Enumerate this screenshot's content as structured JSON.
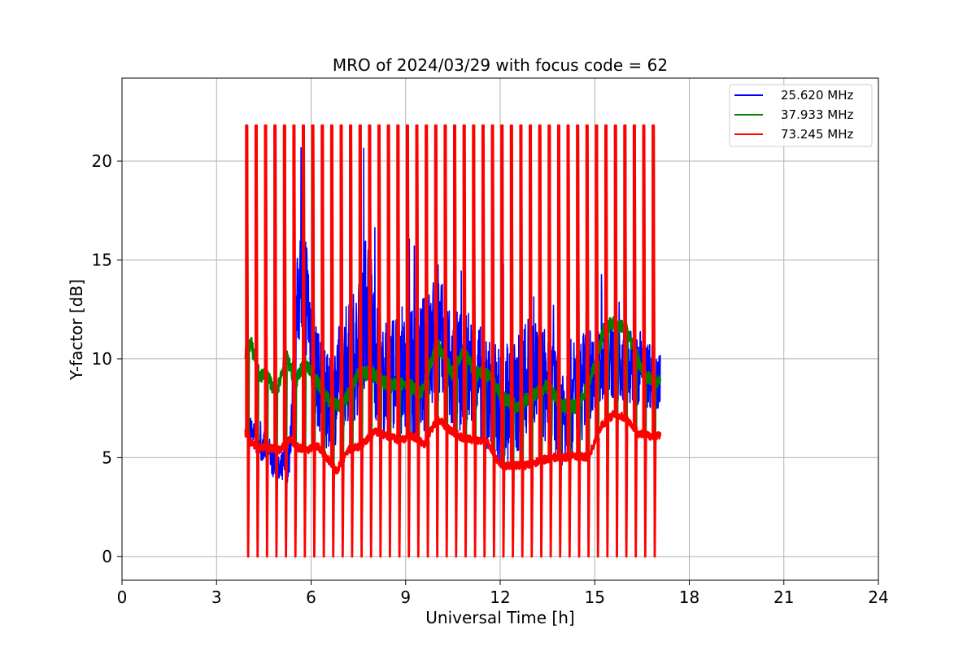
{
  "chart_data": {
    "type": "line",
    "title": "MRO of 2024/03/29 with focus code = 62",
    "xlabel": "Universal Time [h]",
    "ylabel": "Y-factor [dB]",
    "xlim": [
      0,
      24
    ],
    "ylim": [
      -1.2,
      24.2
    ],
    "xticks": [
      0,
      3,
      6,
      9,
      12,
      15,
      18,
      21,
      24
    ],
    "yticks": [
      0,
      5,
      10,
      15,
      20
    ],
    "grid": true,
    "legend_position": "top-right",
    "time_range_h": [
      3.92,
      17.08
    ],
    "calibration_pulse": {
      "period_h": 0.3,
      "peak_db": 21.8,
      "floor_db": {
        "25.620 MHz": 0.1,
        "37.933 MHz": 0.9,
        "73.245 MHz": 0.0
      }
    },
    "series": [
      {
        "name": "25.620 MHz",
        "color": "#0000ff",
        "x": [
          3.92,
          4.3,
          4.6,
          5.0,
          5.3,
          5.6,
          5.8,
          6.2,
          6.6,
          7.0,
          7.5,
          7.8,
          8.2,
          8.6,
          9.0,
          9.5,
          10.0,
          10.5,
          11.0,
          11.5,
          12.0,
          12.5,
          13.0,
          13.5,
          14.0,
          14.5,
          15.0,
          15.5,
          16.0,
          16.5,
          17.0
        ],
        "values": [
          6.8,
          5.8,
          5.4,
          4.2,
          5.0,
          13.5,
          14.0,
          9.0,
          7.5,
          9.5,
          10.5,
          13.0,
          8.5,
          9.5,
          9.0,
          9.5,
          11.0,
          9.0,
          9.5,
          8.5,
          7.5,
          8.0,
          9.5,
          8.5,
          7.5,
          8.5,
          9.5,
          10.0,
          9.5,
          9.5,
          9.0
        ],
        "amplitude": [
          0.6,
          0.8,
          0.8,
          0.8,
          1.2,
          3.0,
          3.5,
          2.5,
          2.5,
          3.0,
          3.5,
          4.0,
          3.0,
          3.0,
          3.0,
          3.5,
          3.5,
          3.5,
          3.0,
          3.0,
          3.0,
          3.0,
          3.0,
          3.0,
          3.0,
          3.0,
          2.0,
          2.0,
          2.0,
          2.0,
          1.5
        ]
      },
      {
        "name": "37.933 MHz",
        "color": "#008000",
        "x": [
          3.92,
          4.1,
          4.3,
          4.6,
          4.9,
          5.2,
          5.5,
          5.8,
          6.2,
          6.6,
          7.0,
          7.5,
          8.0,
          8.5,
          9.0,
          9.5,
          10.0,
          10.5,
          10.8,
          11.2,
          11.6,
          12.0,
          12.5,
          13.0,
          13.5,
          14.0,
          14.5,
          15.0,
          15.3,
          15.6,
          16.0,
          16.3,
          16.6,
          17.0
        ],
        "values": [
          10.2,
          10.8,
          9.2,
          9.2,
          8.2,
          10.2,
          8.8,
          9.8,
          8.8,
          7.8,
          7.6,
          9.3,
          9.2,
          8.6,
          8.8,
          8.2,
          10.8,
          9.2,
          10.5,
          9.3,
          9.2,
          8.2,
          7.6,
          8.1,
          8.6,
          7.6,
          7.6,
          9.6,
          11.6,
          11.8,
          11.5,
          10.2,
          9.1,
          8.9
        ],
        "amplitude": 0.35
      },
      {
        "name": "73.245 MHz",
        "color": "#ff0000",
        "x": [
          3.92,
          4.1,
          4.4,
          4.7,
          5.0,
          5.3,
          5.6,
          5.9,
          6.2,
          6.5,
          6.8,
          7.2,
          7.6,
          8.0,
          8.4,
          8.8,
          9.2,
          9.6,
          10.0,
          10.4,
          10.8,
          11.2,
          11.6,
          12.0,
          12.4,
          12.8,
          13.2,
          13.6,
          14.0,
          14.4,
          14.8,
          15.2,
          15.6,
          16.0,
          16.4,
          16.8,
          17.0
        ],
        "values": [
          6.3,
          5.7,
          5.5,
          5.5,
          5.4,
          5.9,
          5.5,
          5.4,
          5.6,
          5.0,
          4.3,
          5.4,
          5.6,
          6.3,
          6.1,
          5.9,
          6.1,
          5.7,
          7.0,
          6.4,
          6.0,
          5.9,
          5.8,
          4.6,
          4.6,
          4.6,
          4.8,
          5.0,
          5.0,
          5.1,
          5.0,
          6.6,
          7.2,
          7.0,
          6.2,
          6.1,
          6.1
        ],
        "amplitude": 0.2
      }
    ]
  }
}
